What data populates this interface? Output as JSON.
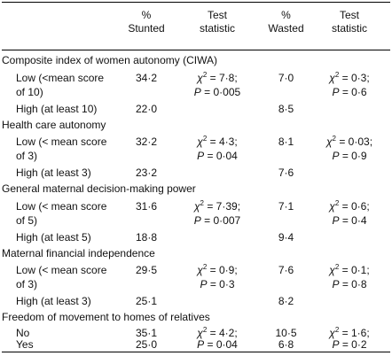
{
  "header": {
    "col1": [
      "%",
      "Stunted"
    ],
    "col2": [
      "Test",
      "statistic"
    ],
    "col3": [
      "%",
      "Wasted"
    ],
    "col4": [
      "Test",
      "statistic"
    ]
  },
  "sections": [
    {
      "title": "Composite index of women autonomy (CIWA)",
      "rows": [
        {
          "label": [
            "Low (<mean score",
            "of 10)"
          ],
          "stunted": "34·2",
          "test1": {
            "chi": "7·8;",
            "p": "0·005"
          },
          "wasted": "7·0",
          "test2": {
            "chi": "0·3;",
            "p": "0·6"
          }
        },
        {
          "label": [
            "High (at least 10)"
          ],
          "stunted": "22·0",
          "wasted": "8·5"
        }
      ]
    },
    {
      "title": "Health care autonomy",
      "rows": [
        {
          "label": [
            "Low (< mean score",
            "of 3)"
          ],
          "stunted": "32·2",
          "test1": {
            "chi": "4·3;",
            "p": "0·04"
          },
          "wasted": "8·1",
          "test2": {
            "chi": "0·03;",
            "p": "0·9"
          }
        },
        {
          "label": [
            "High (at least 3)"
          ],
          "stunted": "23·2",
          "wasted": "7·6"
        }
      ]
    },
    {
      "title": "General maternal decision-making power",
      "rows": [
        {
          "label": [
            "Low (< mean score",
            "of 5)"
          ],
          "stunted": "31·6",
          "test1": {
            "chi": "7·39;",
            "p": "0·007"
          },
          "wasted": "7·1",
          "test2": {
            "chi": "0·6;",
            "p": "0·4"
          }
        },
        {
          "label": [
            "High (at least 5)"
          ],
          "stunted": "18·8",
          "wasted": "9·4"
        }
      ]
    },
    {
      "title": "Maternal financial independence",
      "rows": [
        {
          "label": [
            "Low (< mean score",
            "of 3)"
          ],
          "stunted": "29·5",
          "test1": {
            "chi": "0·9;",
            "p": "0·3"
          },
          "wasted": "7·6",
          "test2": {
            "chi": "0·1;",
            "p": "0·8"
          }
        },
        {
          "label": [
            "High (at least 3)"
          ],
          "stunted": "25·1",
          "wasted": "8·2"
        }
      ]
    },
    {
      "title": "Freedom of movement to homes of relatives",
      "rows": [
        {
          "label": [
            "No"
          ],
          "stunted": "35·1",
          "test1": {
            "chi": "4·2;"
          },
          "wasted": "10·5",
          "test2": {
            "chi": "1·6;"
          }
        },
        {
          "label": [
            "Yes"
          ],
          "stunted": "25·0",
          "test1": {
            "p": "0·04"
          },
          "wasted": "6·8",
          "test2": {
            "p": "0·2"
          }
        }
      ]
    }
  ]
}
